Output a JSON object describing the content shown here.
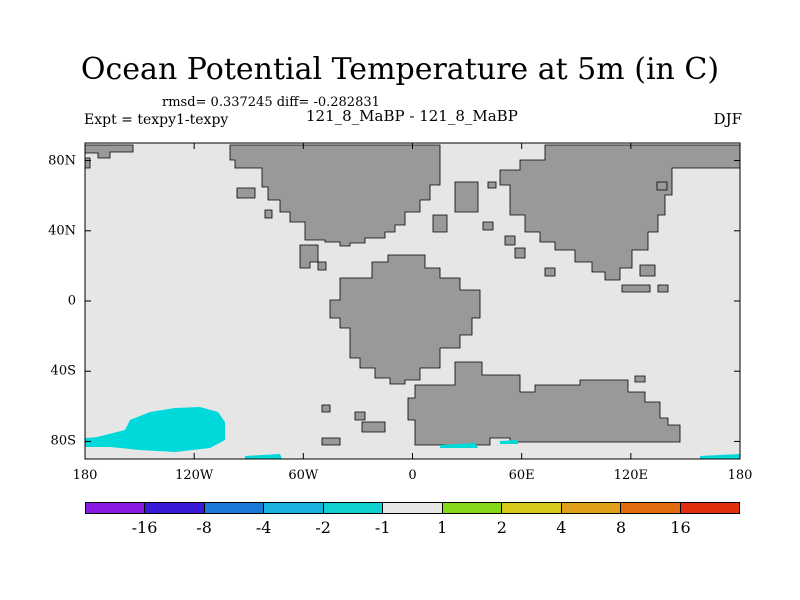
{
  "title": "Ocean Potential Temperature at 5m (in C)",
  "stats": "rmsd= 0.337245  diff= -0.282831",
  "expt": "Expt = texpy1-texpy",
  "subtitle": "121_8_MaBP - 121_8_MaBP",
  "season": "DJF",
  "colors": {
    "ocean_neutral": "#e6e6e6",
    "land": "#999999",
    "cyan_anomaly": "#00d9d9"
  },
  "lat_ticks": [
    {
      "value": 80,
      "label": "80N"
    },
    {
      "value": 40,
      "label": "40N"
    },
    {
      "value": 0,
      "label": "0"
    },
    {
      "value": -40,
      "label": "40S"
    },
    {
      "value": -80,
      "label": "80S"
    }
  ],
  "lon_ticks": [
    {
      "value": -180,
      "label": "180"
    },
    {
      "value": -120,
      "label": "120W"
    },
    {
      "value": -60,
      "label": "60W"
    },
    {
      "value": 0,
      "label": "0"
    },
    {
      "value": 60,
      "label": "60E"
    },
    {
      "value": 120,
      "label": "120E"
    },
    {
      "value": 180,
      "label": "180"
    }
  ],
  "colorbar": {
    "colors": [
      "#8a1ae0",
      "#3a1ad8",
      "#1a7ad8",
      "#1ab0e0",
      "#10d0d0",
      "#e6e6e6",
      "#86d81a",
      "#d8c81a",
      "#e0a01a",
      "#e06a10",
      "#e03010"
    ],
    "labels": [
      "-16",
      "-8",
      "-4",
      "-2",
      "-1",
      "1",
      "2",
      "4",
      "8",
      "16"
    ]
  }
}
